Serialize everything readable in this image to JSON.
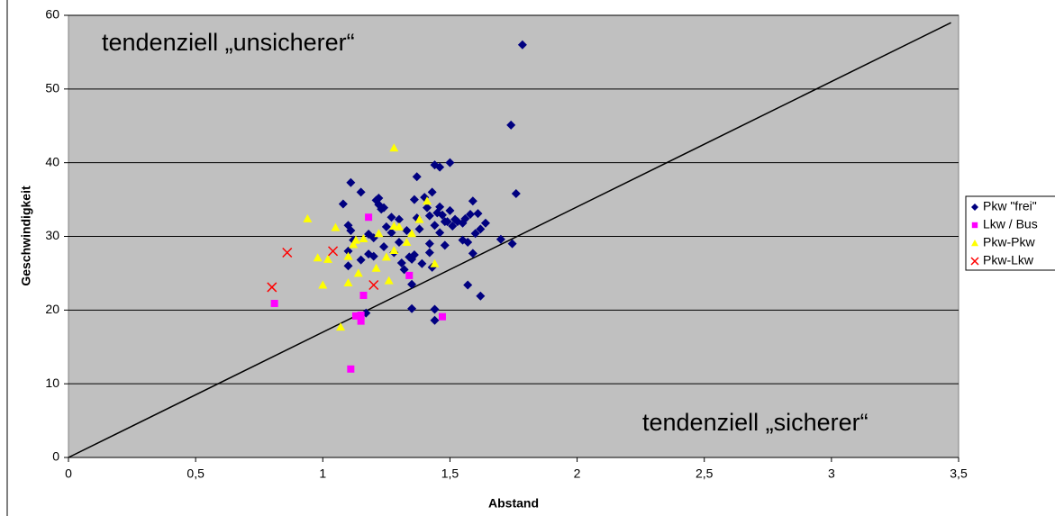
{
  "chart_data": {
    "type": "scatter",
    "x_label": "Abstand",
    "y_label": "Geschwindigkeit",
    "annotations": [
      "tendenziell „unsicherer“",
      "tendenziell „sicherer“"
    ],
    "xlim": [
      0,
      3.5
    ],
    "ylim": [
      0,
      60
    ],
    "xticks": [
      0,
      {
        "value": 0.5,
        "label": "0,5"
      },
      1,
      {
        "value": 1.5,
        "label": "1,5"
      },
      2,
      {
        "value": 2.5,
        "label": "2,5"
      },
      3,
      {
        "value": 3.5,
        "label": "3,5"
      }
    ],
    "yticks": [
      0,
      10,
      20,
      30,
      40,
      50,
      60
    ],
    "grid": true,
    "legend": "right",
    "reference_line": {
      "x": [
        0,
        3.47
      ],
      "y": [
        0,
        59
      ],
      "color": "#000000"
    },
    "series": [
      {
        "name": "Pkw \"frei\"",
        "color": "#000080",
        "marker": "diamond",
        "x": [
          1.785,
          1.74,
          1.76,
          1.745,
          1.7,
          1.62,
          1.57,
          1.5,
          1.46,
          1.44,
          1.11,
          1.08,
          1.15,
          1.37,
          1.35,
          1.44,
          1.44,
          1.17,
          1.35,
          1.59,
          1.1,
          1.11,
          1.1,
          1.1,
          1.12,
          1.15,
          1.18,
          1.18,
          1.2,
          1.21,
          1.22,
          1.23,
          1.24,
          1.25,
          1.24,
          1.27,
          1.28,
          1.3,
          1.3,
          1.31,
          1.33,
          1.34,
          1.35,
          1.36,
          1.36,
          1.37,
          1.38,
          1.4,
          1.41,
          1.42,
          1.42,
          1.43,
          1.43,
          1.44,
          1.45,
          1.46,
          1.46,
          1.47,
          1.48,
          1.49,
          1.5,
          1.51,
          1.52,
          1.53,
          1.55,
          1.55,
          1.56,
          1.57,
          1.58,
          1.59,
          1.6,
          1.61,
          1.62,
          1.64,
          1.2,
          1.22,
          1.27,
          1.32,
          1.39,
          1.42,
          1.48
        ],
        "values": [
          56.0,
          45.1,
          35.8,
          29.0,
          29.6,
          21.9,
          23.4,
          40.0,
          39.4,
          39.7,
          37.3,
          34.4,
          36.0,
          38.1,
          20.2,
          20.1,
          18.6,
          19.6,
          23.5,
          27.7,
          31.5,
          30.8,
          28.0,
          26.0,
          29.5,
          26.8,
          27.6,
          30.3,
          29.8,
          34.9,
          34.3,
          33.7,
          33.9,
          31.3,
          28.6,
          30.5,
          27.8,
          32.3,
          29.2,
          26.4,
          30.8,
          27.2,
          26.9,
          27.5,
          35.0,
          32.5,
          31.0,
          35.3,
          33.9,
          32.8,
          29.0,
          36.0,
          25.8,
          31.5,
          33.2,
          34.0,
          30.5,
          32.9,
          28.8,
          32.0,
          33.5,
          31.4,
          32.3,
          32.0,
          29.5,
          31.8,
          32.4,
          29.2,
          33.0,
          34.8,
          30.4,
          33.1,
          31.0,
          31.8,
          27.3,
          35.2,
          32.6,
          25.5,
          26.3,
          27.8,
          32.0
        ]
      },
      {
        "name": "Lkw / Bus",
        "color": "#ff00ff",
        "marker": "square",
        "x": [
          0.81,
          1.11,
          1.13,
          1.15,
          1.15,
          1.16,
          1.18,
          1.34,
          1.47
        ],
        "values": [
          20.9,
          12.0,
          19.2,
          18.5,
          19.3,
          22.0,
          32.6,
          24.7,
          19.1
        ]
      },
      {
        "name": "Pkw-Pkw",
        "color": "#ffff00",
        "marker": "triangle",
        "x": [
          0.94,
          0.98,
          1.0,
          1.02,
          1.05,
          1.07,
          1.1,
          1.1,
          1.12,
          1.14,
          1.13,
          1.16,
          1.22,
          1.25,
          1.26,
          1.28,
          1.28,
          1.28,
          1.3,
          1.33,
          1.35,
          1.38,
          1.41,
          1.44,
          1.21
        ],
        "values": [
          32.4,
          27.1,
          23.4,
          26.9,
          31.2,
          17.7,
          27.3,
          23.7,
          28.9,
          25.0,
          29.5,
          29.7,
          30.4,
          27.2,
          24.0,
          31.4,
          42.0,
          28.1,
          31.3,
          29.2,
          30.4,
          32.3,
          34.8,
          26.3,
          25.7
        ]
      },
      {
        "name": "Pkw-Lkw",
        "color": "#ff0000",
        "marker": "cross",
        "x": [
          0.8,
          0.86,
          1.04,
          1.2
        ],
        "values": [
          23.1,
          27.8,
          28.0,
          23.4
        ]
      }
    ]
  }
}
